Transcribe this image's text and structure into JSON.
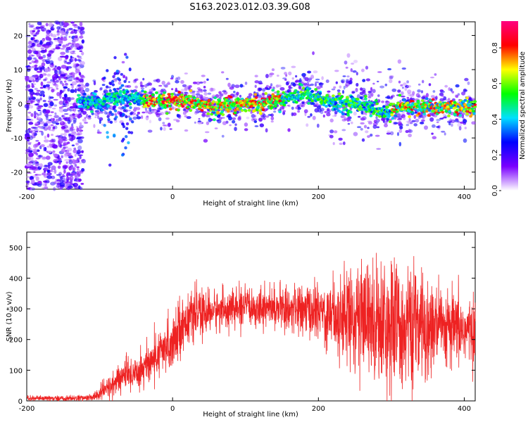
{
  "title": "S163.2023.012.03.39.G08",
  "colors": {
    "snr_line": "#ee2222",
    "axis": "#000000"
  },
  "chart_data": [
    {
      "type": "heatmap",
      "title": "S163.2023.012.03.39.G08",
      "xlabel": "Height of straight line (km)",
      "ylabel": "Frequency (Hz)",
      "xlim": [
        -200,
        415
      ],
      "ylim": [
        -25,
        24
      ],
      "x_ticks": [
        "-200",
        "0",
        "200",
        "400"
      ],
      "y_ticks": [
        "-20",
        "-10",
        "0",
        "10",
        "20"
      ],
      "colorbar": {
        "label": "Normalized spectral amplitude",
        "range": [
          0,
          0.95
        ],
        "ticks": [
          "0.0",
          "0.2",
          "0.4",
          "0.6",
          "0.8"
        ],
        "colors": [
          "#ffffff",
          "#7a00ff",
          "#0000ff",
          "#00e0ff",
          "#00ff00",
          "#ffff00",
          "#ff0000",
          "#ff0080"
        ]
      },
      "ridge": {
        "x": [
          -130,
          -100,
          -80,
          -60,
          -40,
          -20,
          0,
          20,
          40,
          50,
          60,
          80,
          100,
          120,
          140,
          160,
          180,
          200,
          220,
          240,
          260,
          280,
          290,
          300,
          320,
          340,
          360,
          380,
          400,
          415
        ],
        "y": [
          1,
          0,
          2,
          2,
          1,
          0.5,
          0.5,
          0.5,
          0,
          -1,
          -1,
          0,
          0,
          0,
          1,
          2,
          3,
          2,
          0,
          0,
          0,
          -2,
          -3,
          -2,
          -1,
          -1,
          -1,
          -1,
          -1,
          -1
        ]
      },
      "noise_region_x": [
        -200,
        -130
      ],
      "grid": false
    },
    {
      "type": "line",
      "xlabel": "Height of straight line (km)",
      "ylabel": "SNR (10 * v/v)",
      "xlim": [
        -200,
        415
      ],
      "ylim": [
        0,
        550
      ],
      "x_ticks": [
        "-200",
        "0",
        "200",
        "400"
      ],
      "y_ticks": [
        "0",
        "100",
        "200",
        "300",
        "400",
        "500"
      ],
      "envelope": {
        "x": [
          -200,
          -150,
          -110,
          -100,
          -90,
          -80,
          -70,
          -60,
          -50,
          -40,
          -30,
          -20,
          -10,
          0,
          10,
          20,
          30,
          40,
          60,
          80,
          100,
          120,
          140,
          160,
          180,
          200,
          220,
          240,
          260,
          280,
          300,
          320,
          340,
          360,
          380,
          400,
          415
        ],
        "mean": [
          8,
          8,
          10,
          25,
          40,
          55,
          80,
          85,
          95,
          110,
          130,
          145,
          165,
          200,
          240,
          265,
          280,
          285,
          295,
          300,
          305,
          305,
          305,
          300,
          295,
          290,
          285,
          280,
          270,
          260,
          250,
          240,
          240,
          235,
          230,
          230,
          230
        ],
        "spread": [
          5,
          5,
          6,
          15,
          20,
          25,
          30,
          30,
          35,
          40,
          40,
          40,
          45,
          50,
          50,
          45,
          40,
          40,
          35,
          35,
          35,
          35,
          35,
          40,
          45,
          50,
          70,
          85,
          100,
          110,
          120,
          110,
          100,
          85,
          70,
          60,
          55
        ]
      },
      "grid": false
    }
  ]
}
